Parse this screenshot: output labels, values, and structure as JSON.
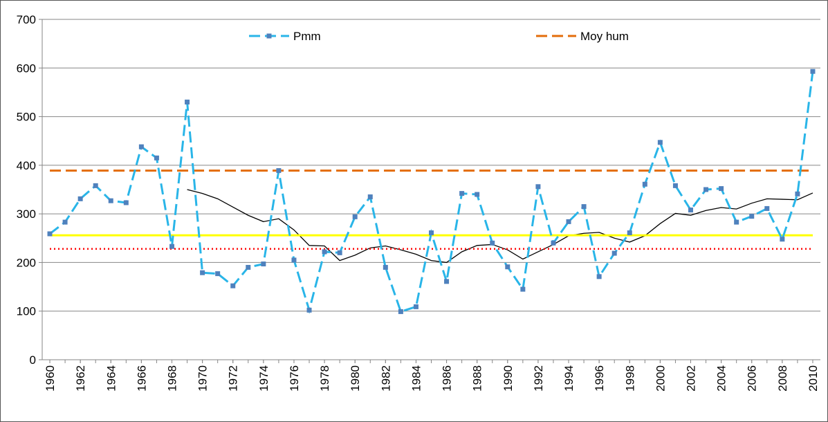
{
  "chart_data": {
    "type": "line",
    "x": [
      1960,
      1961,
      1962,
      1963,
      1964,
      1965,
      1966,
      1967,
      1968,
      1969,
      1970,
      1971,
      1972,
      1973,
      1974,
      1975,
      1976,
      1977,
      1978,
      1979,
      1980,
      1981,
      1982,
      1983,
      1984,
      1985,
      1986,
      1987,
      1988,
      1989,
      1990,
      1991,
      1992,
      1993,
      1994,
      1995,
      1996,
      1997,
      1998,
      1999,
      2000,
      2001,
      2002,
      2003,
      2004,
      2005,
      2006,
      2007,
      2008,
      2009,
      2010
    ],
    "series": [
      {
        "name": "Pmm",
        "color": "#29b5e8",
        "marker_color": "#4f81bd",
        "style": "dashed",
        "marker": "square",
        "values": [
          259,
          283,
          331,
          358,
          327,
          323,
          438,
          415,
          233,
          530,
          179,
          177,
          152,
          190,
          197,
          389,
          205,
          102,
          222,
          220,
          294,
          335,
          190,
          99,
          109,
          261,
          161,
          342,
          340,
          240,
          191,
          145,
          356,
          240,
          284,
          315,
          171,
          219,
          261,
          361,
          447,
          358,
          308,
          350,
          352,
          283,
          295,
          311,
          248,
          341,
          593
        ]
      },
      {
        "name": "Moy hum",
        "color": "#e36c0a",
        "style": "dashed",
        "values": [
          389,
          389,
          389,
          389,
          389,
          389,
          389,
          389,
          389,
          389,
          389,
          389,
          389,
          389,
          389,
          389,
          389,
          389,
          389,
          389,
          389,
          389,
          389,
          389,
          389,
          389,
          389,
          389,
          389,
          389,
          389,
          389,
          389,
          389,
          389,
          389,
          389,
          389,
          389,
          389,
          389,
          389,
          389,
          389,
          389,
          389,
          389,
          389,
          389,
          389,
          389
        ]
      },
      {
        "color": "#ffff00",
        "style": "solid",
        "values": [
          256,
          256,
          256,
          256,
          256,
          256,
          256,
          256,
          256,
          256,
          256,
          256,
          256,
          256,
          256,
          256,
          256,
          256,
          256,
          256,
          256,
          256,
          256,
          256,
          256,
          256,
          256,
          256,
          256,
          256,
          256,
          256,
          256,
          256,
          256,
          256,
          256,
          256,
          256,
          256,
          256,
          256,
          256,
          256,
          256,
          256,
          256,
          256,
          256,
          256,
          256
        ]
      },
      {
        "color": "#ff0000",
        "style": "dotted",
        "values": [
          228,
          228,
          228,
          228,
          228,
          228,
          228,
          228,
          228,
          228,
          228,
          228,
          228,
          228,
          228,
          228,
          228,
          228,
          228,
          228,
          228,
          228,
          228,
          228,
          228,
          228,
          228,
          228,
          228,
          228,
          228,
          228,
          228,
          228,
          228,
          228,
          228,
          228,
          228,
          228,
          228,
          228,
          228,
          228,
          228,
          228,
          228,
          228,
          228,
          228,
          228
        ]
      },
      {
        "color": "#000000",
        "style": "thin",
        "values": [
          null,
          null,
          null,
          null,
          null,
          null,
          null,
          null,
          null,
          350,
          342,
          331,
          314,
          297,
          284,
          290,
          267,
          235,
          234,
          204,
          215,
          230,
          234,
          226,
          217,
          204,
          200,
          222,
          235,
          237,
          226,
          207,
          222,
          237,
          255,
          260,
          262,
          250,
          242,
          255,
          280,
          301,
          297,
          307,
          313,
          310,
          322,
          331,
          330,
          329,
          343
        ]
      }
    ],
    "xlim": [
      1959.5,
      2010.5
    ],
    "xticks": [
      1960,
      1962,
      1964,
      1966,
      1968,
      1970,
      1972,
      1974,
      1976,
      1978,
      1980,
      1982,
      1984,
      1986,
      1988,
      1990,
      1992,
      1994,
      1996,
      1998,
      2000,
      2002,
      2004,
      2006,
      2008,
      2010
    ],
    "ylim": [
      0,
      700
    ],
    "yticks": [
      0,
      100,
      200,
      300,
      400,
      500,
      600,
      700
    ],
    "grid": true
  }
}
